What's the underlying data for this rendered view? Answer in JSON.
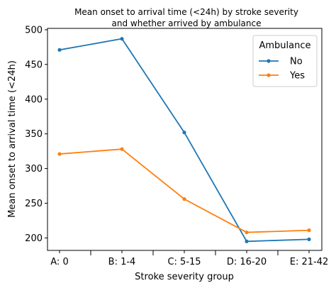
{
  "chart_data": {
    "type": "line",
    "title": "Mean onset to arrival time (<24h) by stroke severity\nand whether arrived by ambulance",
    "xlabel": "Stroke severity group",
    "ylabel": "Mean onset to arrival time (<24h)",
    "categories": [
      "A: 0",
      "B: 1-4",
      "C: 5-15",
      "D: 16-20",
      "E: 21-42"
    ],
    "ylim": [
      182,
      502
    ],
    "yticks": [
      200,
      250,
      300,
      350,
      400,
      450,
      500
    ],
    "grid": false,
    "legend": {
      "title": "Ambulance",
      "placement": "top-right"
    },
    "series": [
      {
        "name": "No",
        "color": "#1f77b4",
        "values": [
          471,
          487,
          352,
          195,
          198
        ]
      },
      {
        "name": "Yes",
        "color": "#ff7f0e",
        "values": [
          321,
          328,
          256,
          208,
          211
        ]
      }
    ]
  }
}
